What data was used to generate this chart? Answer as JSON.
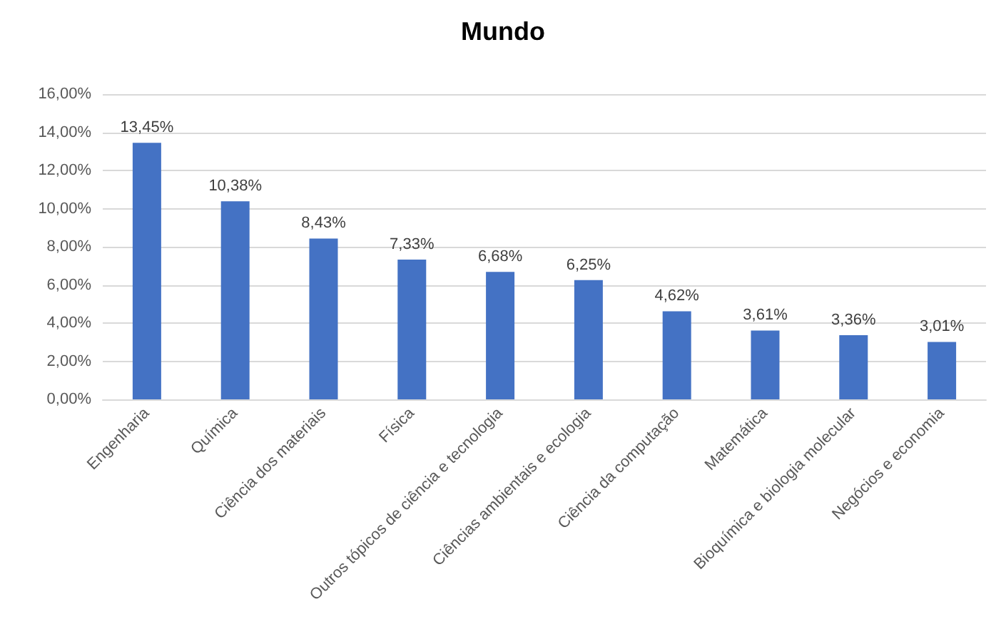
{
  "chart_data": {
    "type": "bar",
    "title": "Mundo",
    "categories": [
      "Engenharia",
      "Química",
      "Ciência dos materiais",
      "Física",
      "Outros tópicos de ciência e tecnologia",
      "Ciências ambientais e ecologia",
      "Ciência da computação",
      "Matemática",
      "Bioquímica e biologia molecular",
      "Negócios e economia"
    ],
    "values": [
      13.45,
      10.38,
      8.43,
      7.33,
      6.68,
      6.25,
      4.62,
      3.61,
      3.36,
      3.01
    ],
    "value_labels": [
      "13,45%",
      "10,38%",
      "8,43%",
      "7,33%",
      "6,68%",
      "6,25%",
      "4,62%",
      "3,61%",
      "3,36%",
      "3,01%"
    ],
    "color": "#4472c4",
    "ylim": [
      0,
      16
    ],
    "yticks": [
      {
        "value": 0,
        "label": "0,00%"
      },
      {
        "value": 2,
        "label": "2,00%"
      },
      {
        "value": 4,
        "label": "4,00%"
      },
      {
        "value": 6,
        "label": "6,00%"
      },
      {
        "value": 8,
        "label": "8,00%"
      },
      {
        "value": 10,
        "label": "10,00%"
      },
      {
        "value": 12,
        "label": "12,00%"
      },
      {
        "value": 14,
        "label": "14,00%"
      },
      {
        "value": 16,
        "label": "16,00%"
      }
    ],
    "grid": "y"
  }
}
